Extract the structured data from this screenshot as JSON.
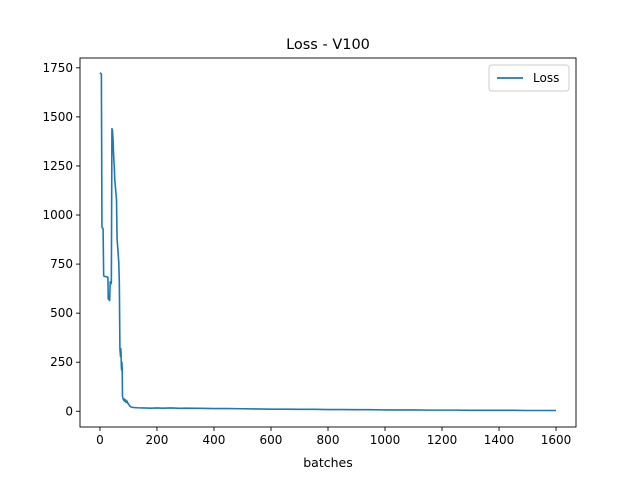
{
  "chart_data": {
    "type": "line",
    "title": "Loss - V100",
    "xlabel": "batches",
    "ylabel": "",
    "xlim": [
      -70,
      1670
    ],
    "ylim": [
      -80,
      1800
    ],
    "xticks": [
      0,
      200,
      400,
      600,
      800,
      1000,
      1200,
      1400,
      1600
    ],
    "yticks": [
      0,
      250,
      500,
      750,
      1000,
      1250,
      1500,
      1750
    ],
    "grid": false,
    "legend": {
      "placement": "top-right",
      "entries": [
        "Loss"
      ]
    },
    "series": [
      {
        "name": "Loss",
        "color": "#1f77b4",
        "x": [
          0,
          2,
          4,
          5,
          7,
          8,
          10,
          11,
          13,
          14,
          16,
          18,
          20,
          22,
          24,
          26,
          28,
          29,
          30,
          32,
          34,
          36,
          38,
          39,
          40,
          42,
          44,
          46,
          48,
          50,
          52,
          55,
          58,
          60,
          62,
          64,
          66,
          68,
          70,
          71,
          72,
          73,
          74,
          75,
          76,
          77,
          78,
          79,
          80,
          82,
          84,
          86,
          88,
          90,
          92,
          95,
          98,
          100,
          103,
          106,
          110,
          115,
          120,
          130,
          150,
          180,
          200,
          220,
          250,
          280,
          300,
          350,
          400,
          450,
          500,
          550,
          600,
          650,
          700,
          750,
          800,
          850,
          900,
          950,
          1000,
          1050,
          1100,
          1150,
          1200,
          1250,
          1300,
          1350,
          1400,
          1450,
          1500,
          1550,
          1600
        ],
        "y": [
          1725,
          1722,
          1720,
          1718,
          940,
          935,
          933,
          930,
          690,
          690,
          688,
          687,
          686,
          686,
          685,
          684,
          682,
          575,
          570,
          568,
          565,
          660,
          655,
          650,
          660,
          1440,
          1430,
          1380,
          1300,
          1250,
          1180,
          1130,
          1080,
          880,
          840,
          800,
          760,
          650,
          320,
          300,
          280,
          320,
          300,
          230,
          210,
          250,
          220,
          80,
          70,
          60,
          55,
          62,
          50,
          58,
          45,
          52,
          40,
          38,
          30,
          25,
          22,
          20,
          19,
          18,
          17,
          16,
          17,
          16,
          17,
          15,
          16,
          15,
          14,
          14,
          13,
          12,
          11,
          11,
          10,
          10,
          9,
          9,
          8,
          8,
          7,
          7,
          7,
          6,
          6,
          6,
          5,
          5,
          5,
          5,
          4,
          4,
          4
        ]
      }
    ]
  }
}
